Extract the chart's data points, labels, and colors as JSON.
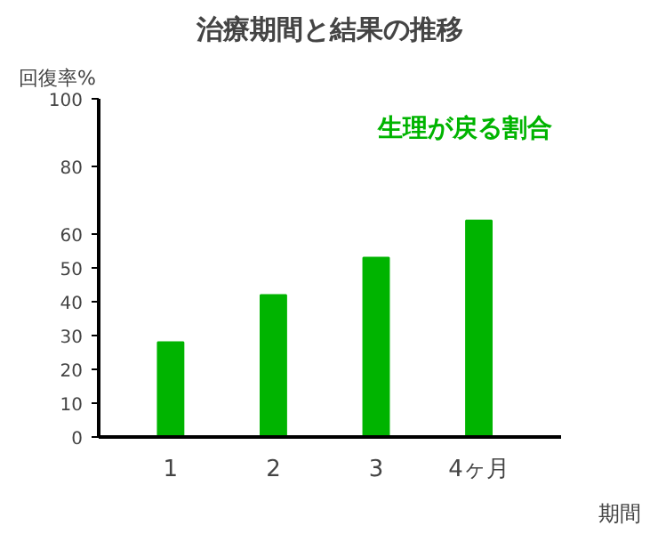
{
  "chart_data": {
    "type": "bar",
    "title": "治療期間と結果の推移",
    "ylabel": "回復率%",
    "xlabel": "期間",
    "categories": [
      "1",
      "2",
      "3",
      "4ヶ月"
    ],
    "series": [
      {
        "name": "生理が戻る割合",
        "color": "#00b400",
        "values": [
          28,
          42,
          53,
          64
        ]
      }
    ],
    "ylim": [
      0,
      100
    ],
    "yticks": [
      0,
      10,
      20,
      30,
      40,
      50,
      60,
      80,
      100
    ],
    "grid": false,
    "legend": "top right"
  }
}
